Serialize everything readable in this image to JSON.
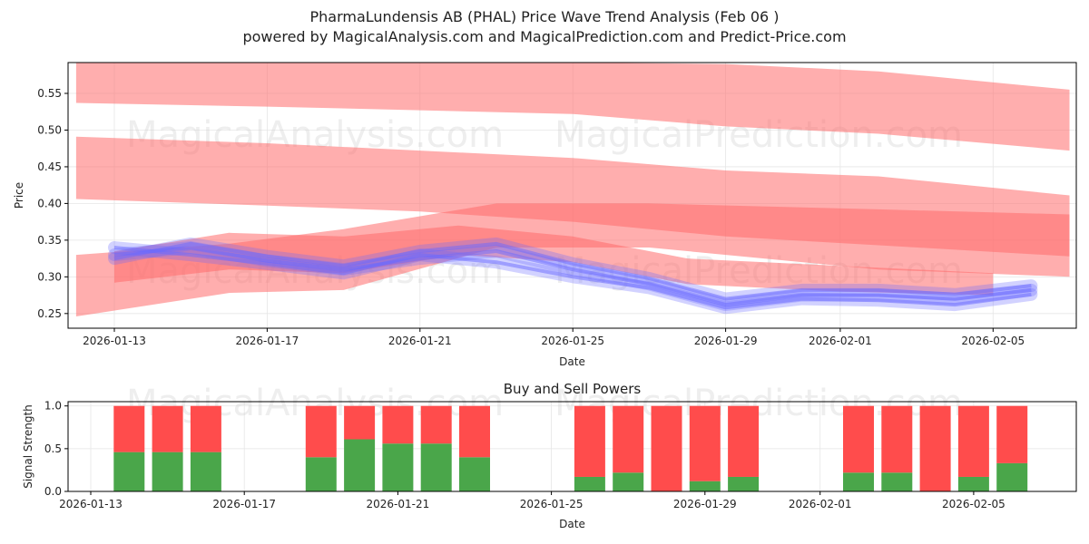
{
  "header": {
    "title": "PharmaLundensis AB (PHAL) Price Wave Trend Analysis (Feb 06 )",
    "subtitle": "powered by MagicalAnalysis.com and MagicalPrediction.com and Predict-Price.com"
  },
  "watermarks": [
    "MagicalAnalysis.com",
    "MagicalPrediction.com"
  ],
  "colors": {
    "red": "#ff6b6b",
    "blue": "#6a6aff",
    "buy": "#4aa64a",
    "sell": "#ff4c4c"
  },
  "chart_data": [
    {
      "type": "area",
      "title": "",
      "xlabel": "Date",
      "ylabel": "Price",
      "ylim": [
        0.23,
        0.592
      ],
      "xlim": [
        "2026-01-12",
        "2026-02-07"
      ],
      "x_ticks": [
        "2026-01-13",
        "2026-01-17",
        "2026-01-21",
        "2026-01-25",
        "2026-01-29",
        "2026-02-01",
        "2026-02-05"
      ],
      "y_ticks": [
        "0.25",
        "0.30",
        "0.35",
        "0.40",
        "0.45",
        "0.50",
        "0.55"
      ],
      "grid": true,
      "red_bands": [
        {
          "name": "upper wave",
          "x": [
            "2026-01-12",
            "2026-01-17",
            "2026-01-21",
            "2026-01-25",
            "2026-01-29",
            "2026-02-02",
            "2026-02-07"
          ],
          "upper": [
            0.6,
            0.595,
            0.592,
            0.592,
            0.59,
            0.58,
            0.555
          ],
          "lower": [
            0.537,
            0.532,
            0.527,
            0.522,
            0.505,
            0.495,
            0.472
          ]
        },
        {
          "name": "middle wave",
          "x": [
            "2026-01-12",
            "2026-01-17",
            "2026-01-21",
            "2026-01-25",
            "2026-01-29",
            "2026-02-02",
            "2026-02-07"
          ],
          "upper": [
            0.491,
            0.482,
            0.472,
            0.462,
            0.445,
            0.437,
            0.411
          ],
          "lower": [
            0.406,
            0.397,
            0.389,
            0.375,
            0.355,
            0.343,
            0.328
          ]
        },
        {
          "name": "rising wave",
          "x": [
            "2026-01-12",
            "2026-01-16",
            "2026-01-19",
            "2026-01-23",
            "2026-01-27",
            "2026-02-02",
            "2026-02-07"
          ],
          "upper": [
            0.33,
            0.345,
            0.365,
            0.4,
            0.4,
            0.392,
            0.385
          ],
          "lower": [
            0.246,
            0.278,
            0.282,
            0.34,
            0.34,
            0.31,
            0.3
          ]
        },
        {
          "name": "low wave",
          "x": [
            "2026-01-13",
            "2026-01-16",
            "2026-01-19",
            "2026-01-22",
            "2026-01-25",
            "2026-01-28",
            "2026-02-01",
            "2026-02-05"
          ],
          "upper": [
            0.335,
            0.36,
            0.355,
            0.37,
            0.355,
            0.325,
            0.315,
            0.305
          ],
          "lower": [
            0.292,
            0.31,
            0.305,
            0.33,
            0.32,
            0.29,
            0.28,
            0.275
          ]
        }
      ],
      "blue_series": [
        {
          "x": [
            "2026-01-13",
            "2026-01-15",
            "2026-01-17",
            "2026-01-19",
            "2026-01-21",
            "2026-01-23",
            "2026-01-25",
            "2026-01-27",
            "2026-01-29",
            "2026-01-31",
            "2026-02-02",
            "2026-02-04",
            "2026-02-06"
          ],
          "y": [
            0.33,
            0.34,
            0.322,
            0.31,
            0.325,
            0.335,
            0.31,
            0.29,
            0.262,
            0.275,
            0.275,
            0.27,
            0.282
          ]
        },
        {
          "x": [
            "2026-01-13",
            "2026-01-15",
            "2026-01-17",
            "2026-01-19",
            "2026-01-21",
            "2026-01-23",
            "2026-01-25",
            "2026-01-27",
            "2026-01-29",
            "2026-01-31",
            "2026-02-02",
            "2026-02-04",
            "2026-02-06"
          ],
          "y": [
            0.34,
            0.33,
            0.318,
            0.305,
            0.33,
            0.32,
            0.3,
            0.285,
            0.258,
            0.27,
            0.268,
            0.262,
            0.276
          ]
        },
        {
          "x": [
            "2026-01-13",
            "2026-01-15",
            "2026-01-17",
            "2026-01-19",
            "2026-01-21",
            "2026-01-23",
            "2026-01-25",
            "2026-01-27",
            "2026-01-29",
            "2026-01-31",
            "2026-02-02",
            "2026-02-04",
            "2026-02-06"
          ],
          "y": [
            0.325,
            0.345,
            0.328,
            0.315,
            0.335,
            0.345,
            0.318,
            0.298,
            0.27,
            0.282,
            0.282,
            0.276,
            0.288
          ]
        }
      ]
    },
    {
      "type": "bar",
      "title": "Buy and Sell Powers",
      "xlabel": "Date",
      "ylabel": "Signal Strength",
      "ylim": [
        0,
        1.05
      ],
      "x_ticks": [
        "2026-01-13",
        "2026-01-17",
        "2026-01-21",
        "2026-01-25",
        "2026-01-29",
        "2026-02-01",
        "2026-02-05"
      ],
      "y_ticks": [
        "0.0",
        "0.5",
        "1.0"
      ],
      "grid": true,
      "bars": [
        {
          "date": "2026-01-14",
          "buy": 0.46,
          "sell": 0.54
        },
        {
          "date": "2026-01-15",
          "buy": 0.46,
          "sell": 0.54
        },
        {
          "date": "2026-01-16",
          "buy": 0.46,
          "sell": 0.54
        },
        {
          "date": "2026-01-19",
          "buy": 0.4,
          "sell": 0.6
        },
        {
          "date": "2026-01-20",
          "buy": 0.61,
          "sell": 0.39
        },
        {
          "date": "2026-01-21",
          "buy": 0.56,
          "sell": 0.44
        },
        {
          "date": "2026-01-22",
          "buy": 0.56,
          "sell": 0.44
        },
        {
          "date": "2026-01-23",
          "buy": 0.4,
          "sell": 0.6
        },
        {
          "date": "2026-01-26",
          "buy": 0.17,
          "sell": 0.83
        },
        {
          "date": "2026-01-27",
          "buy": 0.22,
          "sell": 0.78
        },
        {
          "date": "2026-01-28",
          "buy": 0.0,
          "sell": 1.0
        },
        {
          "date": "2026-01-29",
          "buy": 0.12,
          "sell": 0.88
        },
        {
          "date": "2026-01-30",
          "buy": 0.17,
          "sell": 0.83
        },
        {
          "date": "2026-02-02",
          "buy": 0.22,
          "sell": 0.78
        },
        {
          "date": "2026-02-03",
          "buy": 0.22,
          "sell": 0.78
        },
        {
          "date": "2026-02-04",
          "buy": 0.0,
          "sell": 1.0
        },
        {
          "date": "2026-02-05",
          "buy": 0.17,
          "sell": 0.83
        },
        {
          "date": "2026-02-06",
          "buy": 0.33,
          "sell": 0.67
        }
      ]
    }
  ]
}
